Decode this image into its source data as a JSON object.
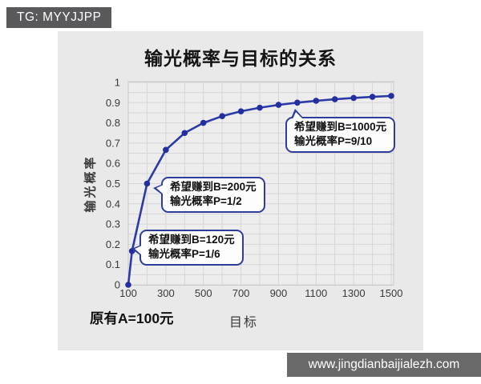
{
  "header": {
    "badge": "TG: MYYJJPP"
  },
  "footer": {
    "watermark": "www.jingdianbaijialezh.com"
  },
  "chart_data": {
    "type": "line",
    "title": "输光概率与目标的关系",
    "xlabel": "目标",
    "ylabel": "输光概率",
    "note": "原有A=100元",
    "x": [
      100,
      120,
      200,
      300,
      400,
      500,
      600,
      700,
      800,
      900,
      1000,
      1100,
      1200,
      1300,
      1400,
      1500
    ],
    "y": [
      0,
      0.1667,
      0.5,
      0.6667,
      0.75,
      0.8,
      0.8333,
      0.8571,
      0.875,
      0.8889,
      0.9,
      0.9091,
      0.9167,
      0.9231,
      0.9286,
      0.9333
    ],
    "xlim": [
      100,
      1500
    ],
    "ylim": [
      0,
      1
    ],
    "xticks": [
      100,
      300,
      500,
      700,
      900,
      1100,
      1300,
      1500
    ],
    "yticks": [
      0,
      0.1,
      0.2,
      0.3,
      0.4,
      0.5,
      0.6,
      0.7,
      0.8,
      0.9,
      1
    ],
    "grid": true,
    "grid_step_x": 100,
    "grid_step_y": 0.05,
    "line_color": "#2b3aa8",
    "point_color": "#232f9e"
  },
  "annotations": [
    {
      "line1": "希望赚到B=1000元",
      "line2": "输光概率P=9/10"
    },
    {
      "line1": "希望赚到B=200元",
      "line2": "输光概率P=1/2"
    },
    {
      "line1": "希望赚到B=120元",
      "line2": "输光概率P=1/6"
    }
  ]
}
